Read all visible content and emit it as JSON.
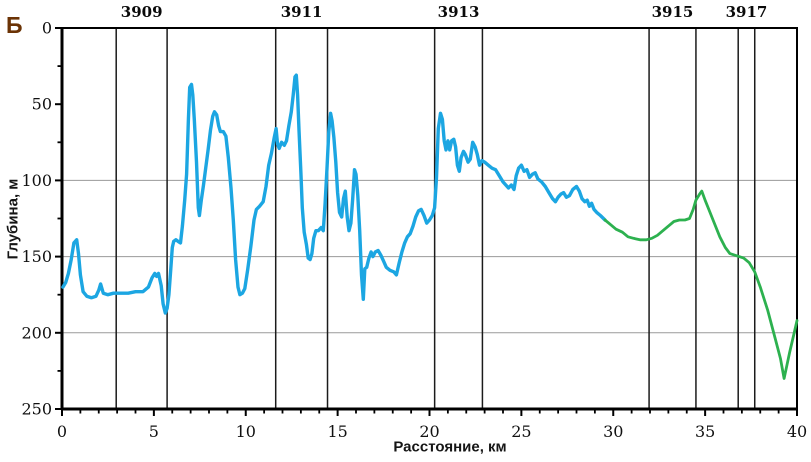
{
  "panel": {
    "label": "Б"
  },
  "axes": {
    "y_title": "Глубина, м",
    "x_title": "Расстояние, км"
  },
  "colors": {
    "blue_series": "#1ca6e2",
    "green_series": "#2db14f",
    "grid": "#9a9a9a",
    "axis": "#000000",
    "station_line": "#1b1b1b",
    "panel_label": "#6b3305"
  },
  "chart_data": {
    "type": "line",
    "title": "",
    "xlabel": "Расстояние, км",
    "ylabel": "Глубина, м",
    "xlim": [
      0,
      40
    ],
    "ylim_depth": [
      0,
      250
    ],
    "y_inverted": true,
    "grid": "horizontal-only",
    "legend": "none",
    "x_major_ticks": [
      0,
      5,
      10,
      15,
      20,
      25,
      30,
      35,
      40
    ],
    "x_minor_step": 1,
    "y_major_ticks": [
      0,
      50,
      100,
      150,
      200,
      250
    ],
    "y_minor_step": 25,
    "y_gridlines": [
      100,
      150,
      200
    ],
    "stations": [
      {
        "label": "3909",
        "x_start": 2.95,
        "x_end": 5.72
      },
      {
        "label": "3911",
        "x_start": 11.63,
        "x_end": 14.45
      },
      {
        "label": "3913",
        "x_start": 20.28,
        "x_end": 22.88
      },
      {
        "label": "3915",
        "x_start": 31.95,
        "x_end": 34.5
      },
      {
        "label": "3917",
        "x_start": 36.8,
        "x_end": 37.7
      }
    ],
    "series": [
      {
        "name": "measured-depth-profile",
        "color": "#1ca6e2",
        "points": [
          [
            0.05,
            170
          ],
          [
            0.2,
            167
          ],
          [
            0.35,
            161
          ],
          [
            0.5,
            152
          ],
          [
            0.65,
            141
          ],
          [
            0.8,
            139
          ],
          [
            0.9,
            148
          ],
          [
            1.0,
            162
          ],
          [
            1.15,
            173
          ],
          [
            1.35,
            176
          ],
          [
            1.6,
            177
          ],
          [
            1.85,
            176
          ],
          [
            2.0,
            172
          ],
          [
            2.1,
            168
          ],
          [
            2.25,
            174
          ],
          [
            2.5,
            175
          ],
          [
            2.8,
            174
          ],
          [
            3.2,
            174
          ],
          [
            3.6,
            174
          ],
          [
            4.0,
            173
          ],
          [
            4.4,
            173
          ],
          [
            4.7,
            170
          ],
          [
            4.9,
            164
          ],
          [
            5.05,
            161
          ],
          [
            5.15,
            163
          ],
          [
            5.25,
            161
          ],
          [
            5.4,
            169
          ],
          [
            5.5,
            181
          ],
          [
            5.62,
            187
          ],
          [
            5.72,
            184
          ],
          [
            5.82,
            175
          ],
          [
            5.92,
            158
          ],
          [
            6.0,
            144
          ],
          [
            6.08,
            140
          ],
          [
            6.2,
            139
          ],
          [
            6.32,
            140
          ],
          [
            6.45,
            141
          ],
          [
            6.55,
            130
          ],
          [
            6.68,
            113
          ],
          [
            6.78,
            96
          ],
          [
            6.88,
            60
          ],
          [
            6.95,
            39
          ],
          [
            7.05,
            37
          ],
          [
            7.12,
            44
          ],
          [
            7.2,
            60
          ],
          [
            7.32,
            88
          ],
          [
            7.42,
            118
          ],
          [
            7.48,
            123
          ],
          [
            7.58,
            113
          ],
          [
            7.7,
            103
          ],
          [
            7.82,
            92
          ],
          [
            7.95,
            80
          ],
          [
            8.08,
            67
          ],
          [
            8.2,
            58
          ],
          [
            8.3,
            55
          ],
          [
            8.42,
            57
          ],
          [
            8.52,
            64
          ],
          [
            8.62,
            68
          ],
          [
            8.78,
            68
          ],
          [
            8.92,
            71
          ],
          [
            9.05,
            85
          ],
          [
            9.2,
            105
          ],
          [
            9.32,
            126
          ],
          [
            9.45,
            152
          ],
          [
            9.58,
            170
          ],
          [
            9.68,
            175
          ],
          [
            9.82,
            174
          ],
          [
            9.95,
            171
          ],
          [
            10.1,
            159
          ],
          [
            10.28,
            143
          ],
          [
            10.45,
            126
          ],
          [
            10.58,
            119
          ],
          [
            10.75,
            117
          ],
          [
            10.95,
            114
          ],
          [
            11.1,
            104
          ],
          [
            11.25,
            90
          ],
          [
            11.4,
            82
          ],
          [
            11.55,
            72
          ],
          [
            11.65,
            66
          ],
          [
            11.73,
            76
          ],
          [
            11.82,
            79
          ],
          [
            11.95,
            75
          ],
          [
            12.1,
            77
          ],
          [
            12.22,
            74
          ],
          [
            12.35,
            64
          ],
          [
            12.48,
            55
          ],
          [
            12.58,
            44
          ],
          [
            12.68,
            32
          ],
          [
            12.75,
            31
          ],
          [
            12.82,
            44
          ],
          [
            12.9,
            67
          ],
          [
            13.0,
            95
          ],
          [
            13.08,
            118
          ],
          [
            13.18,
            134
          ],
          [
            13.3,
            142
          ],
          [
            13.4,
            151
          ],
          [
            13.5,
            152
          ],
          [
            13.6,
            148
          ],
          [
            13.7,
            138
          ],
          [
            13.82,
            133
          ],
          [
            13.95,
            133
          ],
          [
            14.1,
            131
          ],
          [
            14.22,
            133
          ],
          [
            14.32,
            115
          ],
          [
            14.42,
            92
          ],
          [
            14.52,
            68
          ],
          [
            14.62,
            56
          ],
          [
            14.7,
            61
          ],
          [
            14.8,
            72
          ],
          [
            14.9,
            88
          ],
          [
            15.0,
            108
          ],
          [
            15.1,
            121
          ],
          [
            15.22,
            124
          ],
          [
            15.32,
            112
          ],
          [
            15.42,
            107
          ],
          [
            15.52,
            124
          ],
          [
            15.62,
            133
          ],
          [
            15.72,
            128
          ],
          [
            15.82,
            112
          ],
          [
            15.92,
            93
          ],
          [
            16.0,
            96
          ],
          [
            16.1,
            110
          ],
          [
            16.2,
            133
          ],
          [
            16.3,
            162
          ],
          [
            16.4,
            178
          ],
          [
            16.48,
            158
          ],
          [
            16.58,
            157
          ],
          [
            16.7,
            151
          ],
          [
            16.82,
            147
          ],
          [
            16.92,
            150
          ],
          [
            17.05,
            147
          ],
          [
            17.2,
            146
          ],
          [
            17.35,
            149
          ],
          [
            17.5,
            153
          ],
          [
            17.65,
            157
          ],
          [
            17.85,
            159
          ],
          [
            18.05,
            160
          ],
          [
            18.2,
            162
          ],
          [
            18.35,
            154
          ],
          [
            18.5,
            147
          ],
          [
            18.65,
            141
          ],
          [
            18.8,
            137
          ],
          [
            18.95,
            135
          ],
          [
            19.1,
            130
          ],
          [
            19.25,
            124
          ],
          [
            19.4,
            120
          ],
          [
            19.55,
            119
          ],
          [
            19.7,
            123
          ],
          [
            19.85,
            128
          ],
          [
            20.0,
            126
          ],
          [
            20.15,
            123
          ],
          [
            20.28,
            118
          ],
          [
            20.38,
            98
          ],
          [
            20.48,
            66
          ],
          [
            20.6,
            56
          ],
          [
            20.7,
            60
          ],
          [
            20.8,
            74
          ],
          [
            20.9,
            80
          ],
          [
            21.0,
            74
          ],
          [
            21.1,
            80
          ],
          [
            21.2,
            74
          ],
          [
            21.32,
            73
          ],
          [
            21.42,
            78
          ],
          [
            21.52,
            90
          ],
          [
            21.62,
            94
          ],
          [
            21.72,
            85
          ],
          [
            21.85,
            81
          ],
          [
            21.95,
            83
          ],
          [
            22.1,
            88
          ],
          [
            22.22,
            86
          ],
          [
            22.35,
            75
          ],
          [
            22.48,
            78
          ],
          [
            22.6,
            83
          ],
          [
            22.72,
            90
          ],
          [
            22.85,
            87
          ],
          [
            23.0,
            88
          ],
          [
            23.2,
            90
          ],
          [
            23.4,
            92
          ],
          [
            23.6,
            93
          ],
          [
            23.8,
            97
          ],
          [
            24.0,
            101
          ],
          [
            24.15,
            103
          ],
          [
            24.3,
            105
          ],
          [
            24.45,
            103
          ],
          [
            24.6,
            106
          ],
          [
            24.72,
            97
          ],
          [
            24.85,
            92
          ],
          [
            25.0,
            90
          ],
          [
            25.15,
            94
          ],
          [
            25.3,
            93
          ],
          [
            25.45,
            98
          ],
          [
            25.6,
            96
          ],
          [
            25.75,
            95
          ],
          [
            25.9,
            99
          ],
          [
            26.1,
            101
          ],
          [
            26.3,
            104
          ],
          [
            26.5,
            108
          ],
          [
            26.7,
            112
          ],
          [
            26.85,
            114
          ],
          [
            27.0,
            111
          ],
          [
            27.15,
            109
          ],
          [
            27.3,
            108
          ],
          [
            27.45,
            111
          ],
          [
            27.62,
            110
          ],
          [
            27.8,
            106
          ],
          [
            28.0,
            104
          ],
          [
            28.15,
            107
          ],
          [
            28.3,
            112
          ],
          [
            28.45,
            114
          ],
          [
            28.58,
            113
          ],
          [
            28.7,
            117
          ],
          [
            28.82,
            115
          ],
          [
            28.95,
            119
          ],
          [
            29.1,
            121
          ],
          [
            29.3,
            123
          ],
          [
            29.55,
            126
          ]
        ]
      },
      {
        "name": "interpolated-depth-profile",
        "color": "#2db14f",
        "points": [
          [
            29.55,
            126
          ],
          [
            29.85,
            129
          ],
          [
            30.15,
            132
          ],
          [
            30.5,
            134
          ],
          [
            30.8,
            137
          ],
          [
            31.1,
            138
          ],
          [
            31.45,
            139
          ],
          [
            31.8,
            139
          ],
          [
            32.1,
            138
          ],
          [
            32.4,
            136
          ],
          [
            32.7,
            133
          ],
          [
            33.0,
            130
          ],
          [
            33.3,
            127
          ],
          [
            33.6,
            126
          ],
          [
            33.9,
            126
          ],
          [
            34.15,
            125
          ],
          [
            34.35,
            119
          ],
          [
            34.5,
            113
          ],
          [
            34.7,
            109
          ],
          [
            34.82,
            107
          ],
          [
            35.0,
            113
          ],
          [
            35.2,
            119
          ],
          [
            35.5,
            128
          ],
          [
            35.8,
            137
          ],
          [
            36.1,
            144
          ],
          [
            36.35,
            148
          ],
          [
            36.6,
            149
          ],
          [
            36.85,
            150
          ],
          [
            37.1,
            151
          ],
          [
            37.4,
            154
          ],
          [
            37.7,
            160
          ],
          [
            38.0,
            170
          ],
          [
            38.4,
            185
          ],
          [
            38.8,
            203
          ],
          [
            39.1,
            217
          ],
          [
            39.3,
            230
          ],
          [
            39.6,
            213
          ],
          [
            39.85,
            200
          ],
          [
            40.0,
            192
          ]
        ]
      }
    ]
  }
}
